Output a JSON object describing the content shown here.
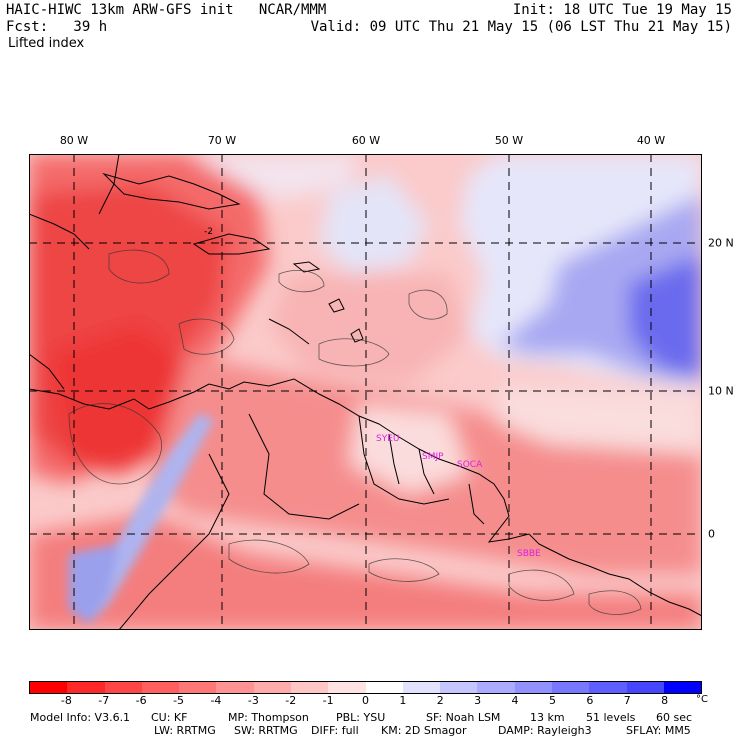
{
  "header": {
    "model_title": "HAIC-HIWC 13km ARW-GFS init   NCAR/MMM",
    "forecast": "Fcst:   39 h",
    "field": "Lifted index",
    "init": "Init: 18 UTC Tue 19 May 15",
    "valid": "Valid: 09 UTC Thu 21 May 15 (06 LST Thu 21 May 15)"
  },
  "map": {
    "lon_labels": [
      "80 W",
      "70 W",
      "60 W",
      "50 W",
      "40 W"
    ],
    "lat_labels": [
      "20 N",
      "10 N",
      "0"
    ],
    "stations": [
      "SYEU",
      "SMJP",
      "SOCA",
      "SBBE"
    ],
    "contour_label": "-2",
    "colors": {
      "strong_neg": "#ee3838",
      "mid_neg": "#f47c7c",
      "weak_neg": "#fbc4c4",
      "neutral": "#fdf4f4",
      "weak_pos": "#e3e3fb",
      "mid_pos": "#a8a8f4",
      "strong_pos": "#5050ee",
      "station": "#e020e0"
    }
  },
  "colorbar": {
    "ticks": [
      "-8",
      "-7",
      "-6",
      "-5",
      "-4",
      "-3",
      "-2",
      "-1",
      "0",
      "1",
      "2",
      "3",
      "4",
      "5",
      "6",
      "7",
      "8"
    ],
    "unit": "°C",
    "colors": [
      "#ff0000",
      "#ff2828",
      "#ff4646",
      "#ff5f5f",
      "#ff7878",
      "#ff9292",
      "#ffabab",
      "#ffc6c6",
      "#ffe2e2",
      "#ffffff",
      "#e2e2ff",
      "#c6c6ff",
      "#ababff",
      "#9292ff",
      "#7878ff",
      "#5f5fff",
      "#4646ff",
      "#0000ff"
    ]
  },
  "footer": {
    "line1": [
      "Model Info: V3.6.1",
      "CU: KF",
      "MP: Thompson",
      "PBL: YSU",
      "SF: Noah LSM",
      "13 km",
      "51 levels",
      "60 sec"
    ],
    "line2": [
      "LW: RRTMG",
      "SW: RRTMG",
      "DIFF: full",
      "KM: 2D Smagor",
      "DAMP: Rayleigh3",
      "SFLAY: MM5"
    ]
  }
}
